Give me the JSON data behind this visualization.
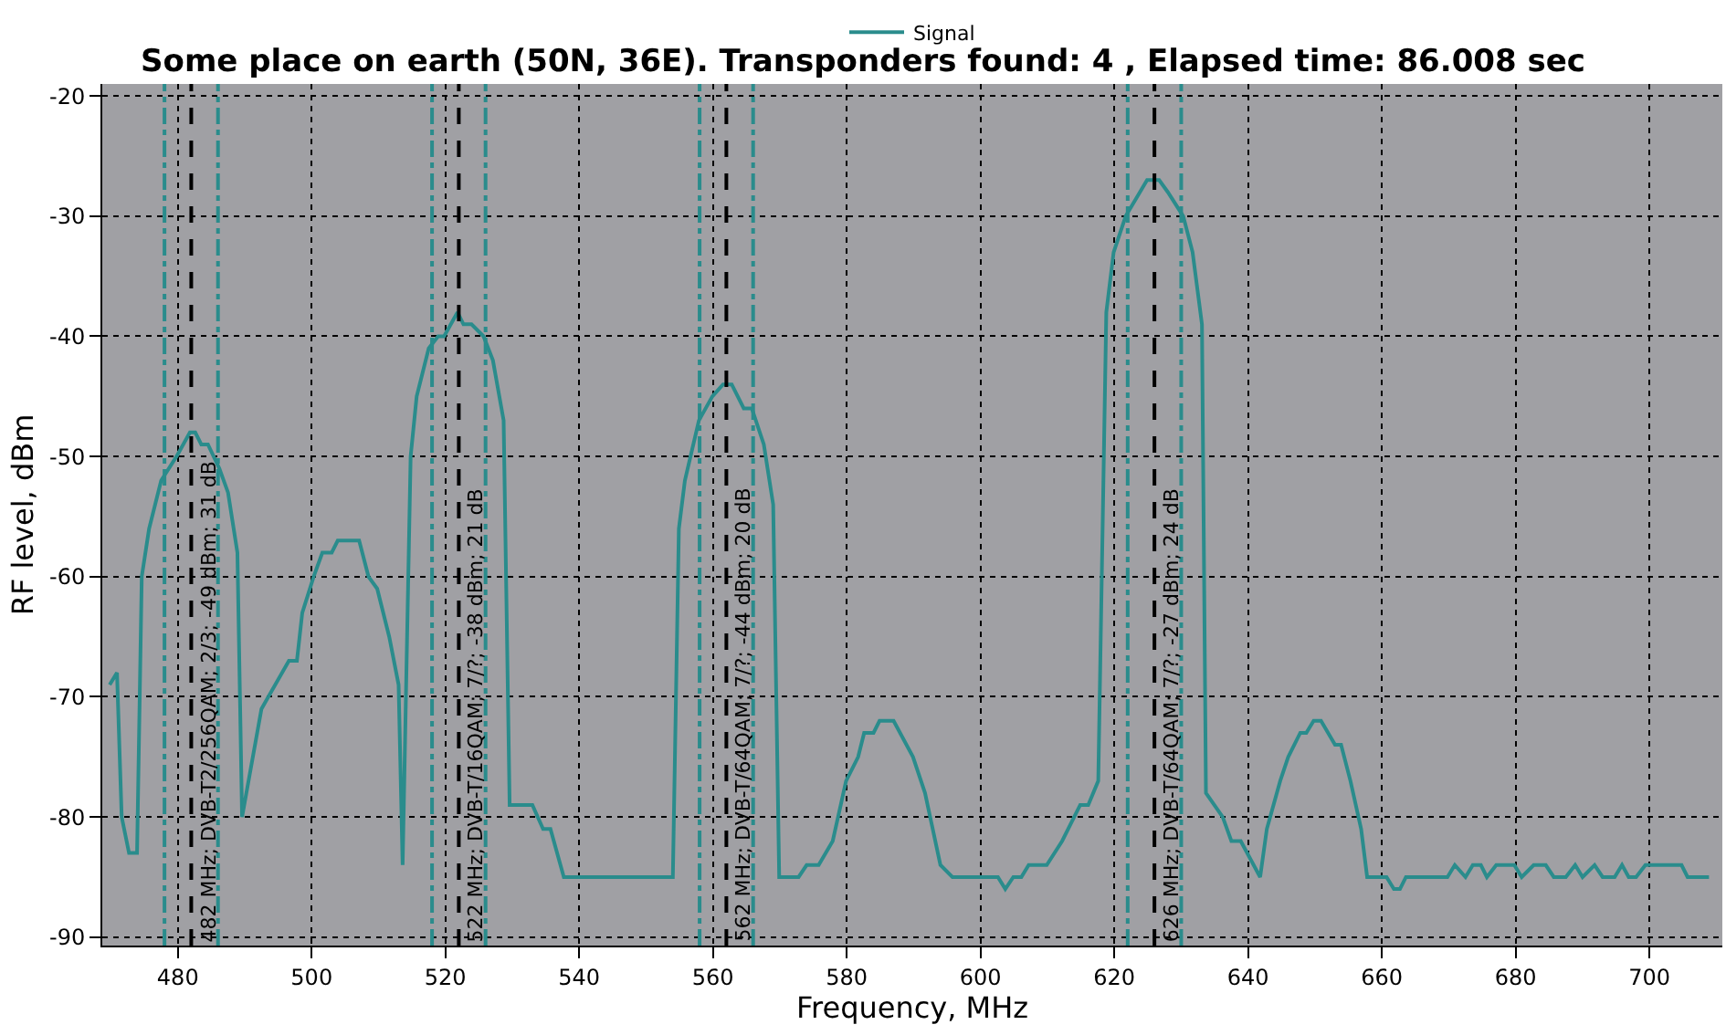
{
  "chart_data": {
    "type": "line",
    "title": "Some place on earth (50N, 36E). Transponders found: 4 , Elapsed time: 86.008 sec",
    "xlabel": "Frequency, MHz",
    "ylabel": "RF level, dBm",
    "xlim": [
      468.7,
      710.9
    ],
    "ylim": [
      -90.7,
      -19
    ],
    "xticks": [
      480,
      500,
      520,
      540,
      560,
      580,
      600,
      620,
      640,
      660,
      680,
      700
    ],
    "yticks": [
      -90,
      -80,
      -70,
      -60,
      -50,
      -40,
      -30,
      -20
    ],
    "grid": true,
    "legend": "top",
    "marker": "none",
    "line_style": "solid",
    "series": [
      {
        "name": "Signal",
        "color": "#2a8c8c",
        "x": [
          469.8,
          470.9,
          471.6,
          472.7,
          473.9,
          474.6,
          475.7,
          477.5,
          479.8,
          481.8,
          482.6,
          483.5,
          484.5,
          486.2,
          487.5,
          488.9,
          489.6,
          492.5,
          496.6,
          497.8,
          498.6,
          500.3,
          501.6,
          503,
          503.9,
          507.1,
          508.5,
          509.8,
          511.6,
          513,
          513.6,
          514.8,
          515.7,
          517.5,
          518.9,
          519.8,
          521.8,
          522.7,
          523.9,
          525.7,
          527.1,
          528.7,
          529.6,
          533,
          534.6,
          535.7,
          537.7,
          554,
          554.9,
          555.8,
          557.9,
          559.9,
          561.5,
          562.8,
          564.6,
          565.8,
          567.6,
          569,
          569.9,
          572.8,
          574,
          575.8,
          577.9,
          579.9,
          581.7,
          582.6,
          584,
          584.9,
          587,
          589.9,
          591.7,
          594,
          595.8,
          602.6,
          603.7,
          604.9,
          606.1,
          607.2,
          609.9,
          612.2,
          614.9,
          616.1,
          617.6,
          618.8,
          619.9,
          621.7,
          624.9,
          626.7,
          628,
          630.3,
          631.7,
          633.1,
          633.7,
          636.2,
          637.5,
          638.9,
          641.8,
          642.8,
          644.8,
          646,
          647.8,
          648.7,
          649.8,
          650.9,
          653,
          653.9,
          655.3,
          656.9,
          657.8,
          660.7,
          661.8,
          662.7,
          663.6,
          669.8,
          670.9,
          672.5,
          673.6,
          674.8,
          675.7,
          677.1,
          679.8,
          680.9,
          682.7,
          684.5,
          685.7,
          687.5,
          688.9,
          690,
          691.8,
          693,
          694.8,
          695.9,
          696.9,
          698,
          699.4,
          704.8,
          705.7,
          708.9
        ],
        "values": [
          -69,
          -68,
          -80,
          -83,
          -83,
          -60,
          -56,
          -52,
          -50,
          -48,
          -48,
          -49,
          -49,
          -51,
          -53,
          -58,
          -80,
          -71,
          -67,
          -67,
          -63,
          -60,
          -58,
          -58,
          -57,
          -57,
          -60,
          -61,
          -65,
          -69,
          -84,
          -50,
          -45,
          -41,
          -40,
          -40,
          -38,
          -39,
          -39,
          -40,
          -42,
          -47,
          -79,
          -79,
          -81,
          -81,
          -85,
          -85,
          -56,
          -52,
          -47,
          -45,
          -44,
          -44,
          -46,
          -46,
          -49,
          -54,
          -85,
          -85,
          -84,
          -84,
          -82,
          -77,
          -75,
          -73,
          -73,
          -72,
          -72,
          -75,
          -78,
          -84,
          -85,
          -85,
          -86,
          -85,
          -85,
          -84,
          -84,
          -82,
          -79,
          -79,
          -77,
          -38,
          -33,
          -30,
          -27,
          -27,
          -28,
          -30,
          -33,
          -39,
          -78,
          -80,
          -82,
          -82,
          -85,
          -81,
          -77,
          -75,
          -73,
          -73,
          -72,
          -72,
          -74,
          -74,
          -77,
          -81,
          -85,
          -85,
          -86,
          -86,
          -85,
          -85,
          -84,
          -85,
          -84,
          -84,
          -85,
          -84,
          -84,
          -85,
          -84,
          -84,
          -85,
          -85,
          -84,
          -85,
          -84,
          -85,
          -85,
          -84,
          -85,
          -85,
          -84,
          -84,
          -85,
          -85
        ]
      }
    ],
    "ref_lines": [
      {
        "axis": "x",
        "value": 478,
        "color": "#2a8c8c",
        "line_style": "dashdot"
      },
      {
        "axis": "x",
        "value": 486,
        "color": "#2a8c8c",
        "line_style": "dashdot"
      },
      {
        "axis": "x",
        "value": 482,
        "label": "482 MHz; DVB-T2/256QAM; 2/3; -49 dBm; 31 dB",
        "color": "#000000",
        "line_style": "dashed"
      },
      {
        "axis": "x",
        "value": 518,
        "color": "#2a8c8c",
        "line_style": "dashdot"
      },
      {
        "axis": "x",
        "value": 526,
        "color": "#2a8c8c",
        "line_style": "dashdot"
      },
      {
        "axis": "x",
        "value": 522,
        "label": "522 MHz; DVB-T/16QAM; 7/?; -38 dBm; 21 dB",
        "color": "#000000",
        "line_style": "dashed"
      },
      {
        "axis": "x",
        "value": 558,
        "color": "#2a8c8c",
        "line_style": "dashdot"
      },
      {
        "axis": "x",
        "value": 566,
        "color": "#2a8c8c",
        "line_style": "dashdot"
      },
      {
        "axis": "x",
        "value": 562,
        "label": "562 MHz; DVB-T/64QAM; 7/?; -44 dBm; 20 dB",
        "color": "#000000",
        "line_style": "dashed"
      },
      {
        "axis": "x",
        "value": 622,
        "color": "#2a8c8c",
        "line_style": "dashdot"
      },
      {
        "axis": "x",
        "value": 630,
        "color": "#2a8c8c",
        "line_style": "dashdot"
      },
      {
        "axis": "x",
        "value": 626,
        "label": "626 MHz; DVB-T/64QAM; 7/?; -27 dBm; 24 dB",
        "color": "#000000",
        "line_style": "dashed"
      }
    ]
  }
}
